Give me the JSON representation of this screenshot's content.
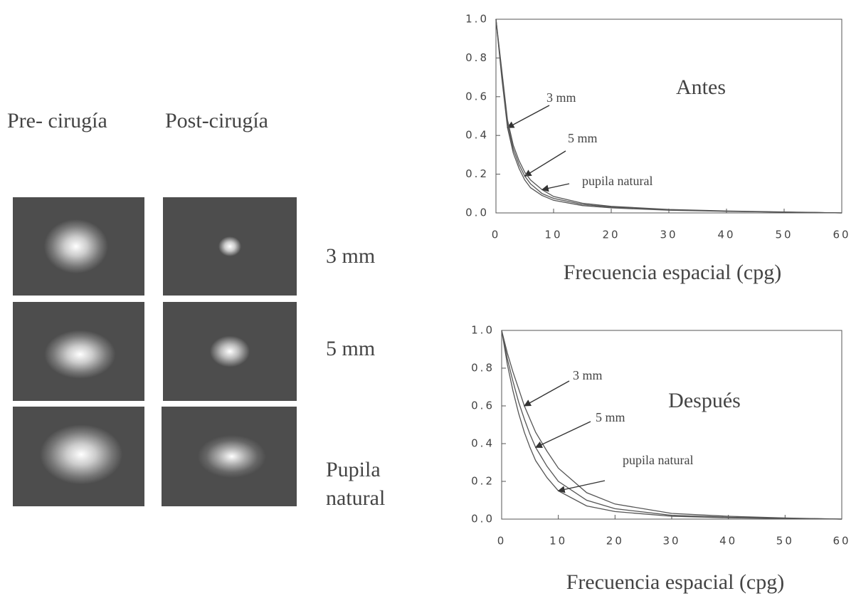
{
  "panels": {
    "column_headers": [
      "Pre- cirugía",
      "Post-cirugía"
    ],
    "row_labels": [
      "3 mm",
      "5 mm",
      "Pupila natural"
    ]
  },
  "chart_data": [
    {
      "type": "line",
      "title": "Antes",
      "x_label": "Frecuencia espacial (cpg)",
      "x": [
        0,
        1,
        2,
        3,
        4,
        5,
        6,
        8,
        10,
        15,
        20,
        30,
        40,
        50,
        60
      ],
      "xlim": [
        0,
        60
      ],
      "ylim": [
        0,
        1
      ],
      "xticks": [
        0,
        10,
        20,
        30,
        40,
        50,
        60
      ],
      "yticks": [
        {
          "value": 0,
          "label": "0.0"
        },
        {
          "value": 0.2,
          "label": "0.2"
        },
        {
          "value": 0.4,
          "label": "0.4"
        },
        {
          "value": 0.6,
          "label": "0.6"
        },
        {
          "value": 0.8,
          "label": "0.8"
        },
        {
          "value": 1,
          "label": "1.0"
        }
      ],
      "series": [
        {
          "name": "3 mm",
          "color": "#555555",
          "values": [
            1.0,
            0.7,
            0.44,
            0.31,
            0.23,
            0.17,
            0.13,
            0.09,
            0.065,
            0.038,
            0.026,
            0.014,
            0.008,
            0.004,
            0.0
          ]
        },
        {
          "name": "5 mm",
          "color": "#555555",
          "values": [
            1.0,
            0.72,
            0.46,
            0.33,
            0.25,
            0.19,
            0.15,
            0.1,
            0.075,
            0.044,
            0.03,
            0.016,
            0.009,
            0.004,
            0.0
          ]
        },
        {
          "name": "pupila natural",
          "color": "#555555",
          "values": [
            1.0,
            0.74,
            0.48,
            0.35,
            0.27,
            0.21,
            0.17,
            0.12,
            0.085,
            0.05,
            0.034,
            0.018,
            0.01,
            0.005,
            0.0
          ]
        }
      ]
    },
    {
      "type": "line",
      "title": "Después",
      "x_label": "Frecuencia espacial (cpg)",
      "x": [
        0,
        1,
        2,
        3,
        4,
        5,
        6,
        8,
        10,
        15,
        20,
        30,
        40,
        50,
        60
      ],
      "xlim": [
        0,
        60
      ],
      "ylim": [
        0,
        1
      ],
      "xticks": [
        0,
        10,
        20,
        30,
        40,
        50,
        60
      ],
      "yticks": [
        {
          "value": 0,
          "label": "0.0"
        },
        {
          "value": 0.2,
          "label": "0.2"
        },
        {
          "value": 0.4,
          "label": "0.4"
        },
        {
          "value": 0.6,
          "label": "0.6"
        },
        {
          "value": 0.8,
          "label": "0.8"
        },
        {
          "value": 1,
          "label": "1.0"
        }
      ],
      "series": [
        {
          "name": "3 mm",
          "color": "#555555",
          "values": [
            1.0,
            0.88,
            0.78,
            0.69,
            0.6,
            0.53,
            0.46,
            0.36,
            0.27,
            0.14,
            0.08,
            0.03,
            0.015,
            0.006,
            0.0
          ]
        },
        {
          "name": "5 mm",
          "color": "#555555",
          "values": [
            1.0,
            0.85,
            0.73,
            0.62,
            0.53,
            0.45,
            0.38,
            0.28,
            0.2,
            0.1,
            0.055,
            0.02,
            0.01,
            0.004,
            0.0
          ]
        },
        {
          "name": "pupila natural",
          "color": "#555555",
          "values": [
            1.0,
            0.82,
            0.68,
            0.56,
            0.46,
            0.38,
            0.31,
            0.22,
            0.15,
            0.07,
            0.04,
            0.015,
            0.007,
            0.003,
            0.0
          ]
        }
      ]
    }
  ]
}
